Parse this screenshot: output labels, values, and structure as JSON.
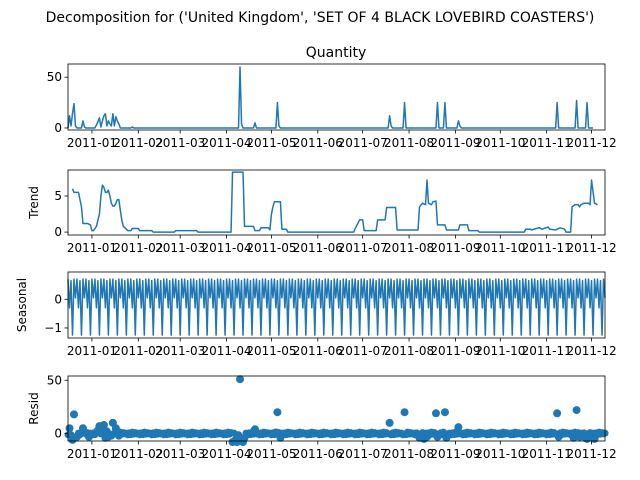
{
  "figure": {
    "suptitle": "Decomposition for ('United Kingdom', 'SET OF 4 BLACK LOVEBIRD COASTERS')"
  },
  "chart_data": [
    {
      "type": "line",
      "title": "Quantity",
      "ylabel": "",
      "ylim": [
        -2,
        63
      ],
      "yticks": [
        0,
        50
      ],
      "xticks": [
        "2011-01",
        "2011-02",
        "2011-03",
        "2011-04",
        "2011-05",
        "2011-06",
        "2011-07",
        "2011-08",
        "2011-09",
        "2011-10",
        "2011-11",
        "2011-12"
      ],
      "xlim_days": [
        -16,
        343
      ],
      "grid": false,
      "points": [
        [
          -16,
          0
        ],
        [
          -15,
          12
        ],
        [
          -14,
          2
        ],
        [
          -13,
          14
        ],
        [
          -12,
          24
        ],
        [
          -11,
          2
        ],
        [
          -10,
          0
        ],
        [
          -8,
          0
        ],
        [
          -7,
          0
        ],
        [
          -6,
          7
        ],
        [
          -5,
          1
        ],
        [
          -4,
          0
        ],
        [
          2,
          0
        ],
        [
          4,
          6
        ],
        [
          5,
          10
        ],
        [
          6,
          1
        ],
        [
          7,
          7
        ],
        [
          8,
          12
        ],
        [
          9,
          14
        ],
        [
          10,
          2
        ],
        [
          11,
          7
        ],
        [
          12,
          4
        ],
        [
          13,
          2
        ],
        [
          14,
          14
        ],
        [
          15,
          2
        ],
        [
          16,
          11
        ],
        [
          17,
          7
        ],
        [
          18,
          4
        ],
        [
          19,
          0
        ],
        [
          26,
          0
        ],
        [
          27,
          1
        ],
        [
          28,
          0
        ],
        [
          98,
          0
        ],
        [
          99,
          60
        ],
        [
          100,
          4
        ],
        [
          101,
          0
        ],
        [
          108,
          0
        ],
        [
          109,
          5
        ],
        [
          110,
          0
        ],
        [
          123,
          0
        ],
        [
          124,
          25
        ],
        [
          125,
          2
        ],
        [
          126,
          0
        ],
        [
          198,
          0
        ],
        [
          199,
          12
        ],
        [
          200,
          2
        ],
        [
          201,
          0
        ],
        [
          208,
          0
        ],
        [
          209,
          25
        ],
        [
          210,
          0
        ],
        [
          230,
          0
        ],
        [
          231,
          25
        ],
        [
          232,
          0
        ],
        [
          235,
          0
        ],
        [
          236,
          25
        ],
        [
          237,
          0
        ],
        [
          244,
          0
        ],
        [
          245,
          7
        ],
        [
          246,
          2
        ],
        [
          247,
          0
        ],
        [
          310,
          0
        ],
        [
          311,
          25
        ],
        [
          312,
          0
        ],
        [
          323,
          0
        ],
        [
          324,
          27
        ],
        [
          325,
          0
        ],
        [
          330,
          0
        ],
        [
          331,
          25
        ],
        [
          332,
          0
        ],
        [
          335,
          0
        ]
      ]
    },
    {
      "type": "line",
      "title": "",
      "ylabel": "Trend",
      "ylim": [
        -0.4,
        8.6
      ],
      "yticks": [
        0,
        5
      ],
      "xticks": [
        "2011-01",
        "2011-02",
        "2011-03",
        "2011-04",
        "2011-05",
        "2011-06",
        "2011-07",
        "2011-08",
        "2011-09",
        "2011-10",
        "2011-11",
        "2011-12"
      ],
      "xlim_days": [
        -16,
        343
      ],
      "grid": false,
      "points": [
        [
          -13,
          6
        ],
        [
          -12,
          5.5
        ],
        [
          -9,
          5.5
        ],
        [
          -8,
          4.5
        ],
        [
          -7,
          3.5
        ],
        [
          -6,
          1.2
        ],
        [
          -3,
          1.2
        ],
        [
          -1,
          1.0
        ],
        [
          0,
          0.2
        ],
        [
          1,
          0.2
        ],
        [
          3,
          0.8
        ],
        [
          5,
          2.5
        ],
        [
          6,
          5
        ],
        [
          7,
          6.5
        ],
        [
          8,
          6.2
        ],
        [
          9,
          5.5
        ],
        [
          10,
          5.5
        ],
        [
          11,
          5.8
        ],
        [
          12,
          5
        ],
        [
          13,
          4
        ],
        [
          14,
          3.6
        ],
        [
          15,
          3.6
        ],
        [
          16,
          4
        ],
        [
          17,
          4.5
        ],
        [
          18,
          4.5
        ],
        [
          19,
          3
        ],
        [
          20,
          1.6
        ],
        [
          21,
          0.8
        ],
        [
          24,
          0.2
        ],
        [
          26,
          0.2
        ],
        [
          27,
          0.5
        ],
        [
          31,
          0.5
        ],
        [
          32,
          0.2
        ],
        [
          40,
          0.2
        ],
        [
          41,
          0
        ],
        [
          55,
          0
        ],
        [
          56,
          0.2
        ],
        [
          70,
          0.2
        ],
        [
          71,
          0
        ],
        [
          93,
          0
        ],
        [
          94,
          8.3
        ],
        [
          101,
          8.3
        ],
        [
          102,
          0.8
        ],
        [
          108,
          0.8
        ],
        [
          109,
          0.2
        ],
        [
          112,
          0.2
        ],
        [
          113,
          0.6
        ],
        [
          118,
          0.6
        ],
        [
          119,
          0.3
        ],
        [
          120,
          2.5
        ],
        [
          121,
          3.5
        ],
        [
          122,
          4.2
        ],
        [
          126,
          4.2
        ],
        [
          127,
          0.4
        ],
        [
          130,
          0.4
        ],
        [
          131,
          0
        ],
        [
          175,
          0
        ],
        [
          176,
          0.5
        ],
        [
          179,
          1.7
        ],
        [
          181,
          1.7
        ],
        [
          182,
          0.2
        ],
        [
          190,
          0.2
        ],
        [
          191,
          1.7
        ],
        [
          196,
          1.7
        ],
        [
          197,
          3.4
        ],
        [
          203,
          3.4
        ],
        [
          204,
          0.3
        ],
        [
          218,
          0.3
        ],
        [
          219,
          3.5
        ],
        [
          221,
          4
        ],
        [
          223,
          3.8
        ],
        [
          224,
          7.2
        ],
        [
          225,
          4
        ],
        [
          227,
          3.8
        ],
        [
          228,
          4.2
        ],
        [
          230,
          4.3
        ],
        [
          231,
          1
        ],
        [
          236,
          1
        ],
        [
          237,
          0.3
        ],
        [
          245,
          0.3
        ],
        [
          246,
          1
        ],
        [
          251,
          1
        ],
        [
          252,
          0.2
        ],
        [
          258,
          0.2
        ],
        [
          259,
          0
        ],
        [
          289,
          0
        ],
        [
          290,
          0.4
        ],
        [
          293,
          0.4
        ],
        [
          294,
          0.3
        ],
        [
          297,
          0.5
        ],
        [
          299,
          0.6
        ],
        [
          301,
          0.4
        ],
        [
          302,
          0.5
        ],
        [
          305,
          0.7
        ],
        [
          306,
          0.4
        ],
        [
          310,
          0.3
        ],
        [
          311,
          0.4
        ],
        [
          313,
          0.6
        ],
        [
          316,
          0.4
        ],
        [
          317,
          0
        ],
        [
          320,
          0
        ],
        [
          321,
          3.5
        ],
        [
          323,
          3.8
        ],
        [
          325,
          3.8
        ],
        [
          326,
          3.5
        ],
        [
          327,
          3.8
        ],
        [
          329,
          4.0
        ],
        [
          332,
          4.0
        ],
        [
          333,
          3.8
        ],
        [
          334,
          7.2
        ],
        [
          336,
          4
        ],
        [
          338,
          3.8
        ]
      ]
    },
    {
      "type": "line",
      "title": "",
      "ylabel": "Seasonal",
      "ylim": [
        -1.35,
        0.95
      ],
      "yticks": [
        -1,
        0
      ],
      "xticks": [
        "2011-01",
        "2011-02",
        "2011-03",
        "2011-04",
        "2011-05",
        "2011-06",
        "2011-07",
        "2011-08",
        "2011-09",
        "2011-10",
        "2011-11",
        "2011-12"
      ],
      "xlim_days": [
        -16,
        343
      ],
      "grid": false,
      "period_days": 6,
      "start_day": -16,
      "end_day": 343,
      "pattern": [
        0.7,
        -0.3,
        0.65,
        -1.25,
        0.7,
        0.05
      ]
    },
    {
      "type": "scatter",
      "title": "",
      "ylabel": "Resid",
      "ylim": [
        -7,
        54
      ],
      "yticks": [
        0,
        50
      ],
      "xticks": [
        "2011-01",
        "2011-02",
        "2011-03",
        "2011-04",
        "2011-05",
        "2011-06",
        "2011-07",
        "2011-08",
        "2011-09",
        "2011-10",
        "2011-11",
        "2011-12"
      ],
      "xlim_days": [
        -16,
        343
      ],
      "grid": false,
      "baseline": 0,
      "start_day": -16,
      "end_day": 343,
      "base_pattern": [
        -1.2,
        0.6,
        -1.0,
        1.3,
        -0.6,
        0.9,
        -0.3,
        0.4
      ],
      "outliers": [
        [
          -15,
          5
        ],
        [
          -13,
          -6
        ],
        [
          -12,
          18
        ],
        [
          -11,
          -4
        ],
        [
          -10,
          -3
        ],
        [
          -6,
          5
        ],
        [
          -2,
          -3
        ],
        [
          4,
          3
        ],
        [
          5,
          7
        ],
        [
          7,
          2
        ],
        [
          8,
          8
        ],
        [
          9,
          -4
        ],
        [
          10,
          2
        ],
        [
          11,
          -3
        ],
        [
          13,
          -2
        ],
        [
          14,
          10
        ],
        [
          16,
          5
        ],
        [
          17,
          2
        ],
        [
          18,
          -2
        ],
        [
          94,
          -8
        ],
        [
          96,
          -6
        ],
        [
          97,
          -8
        ],
        [
          99,
          51
        ],
        [
          100,
          -6
        ],
        [
          101,
          -8
        ],
        [
          102,
          -4
        ],
        [
          109,
          4
        ],
        [
          123,
          1
        ],
        [
          124,
          20
        ],
        [
          126,
          -4
        ],
        [
          199,
          10
        ],
        [
          209,
          20
        ],
        [
          219,
          -4
        ],
        [
          222,
          -5
        ],
        [
          224,
          -3
        ],
        [
          230,
          19
        ],
        [
          231,
          -3
        ],
        [
          236,
          20
        ],
        [
          237,
          -4
        ],
        [
          245,
          6
        ],
        [
          311,
          19
        ],
        [
          312,
          -3
        ],
        [
          322,
          -4
        ],
        [
          324,
          22
        ],
        [
          326,
          -3
        ],
        [
          330,
          -4
        ],
        [
          331,
          -5
        ],
        [
          334,
          -3
        ],
        [
          336,
          -5
        ]
      ]
    }
  ]
}
